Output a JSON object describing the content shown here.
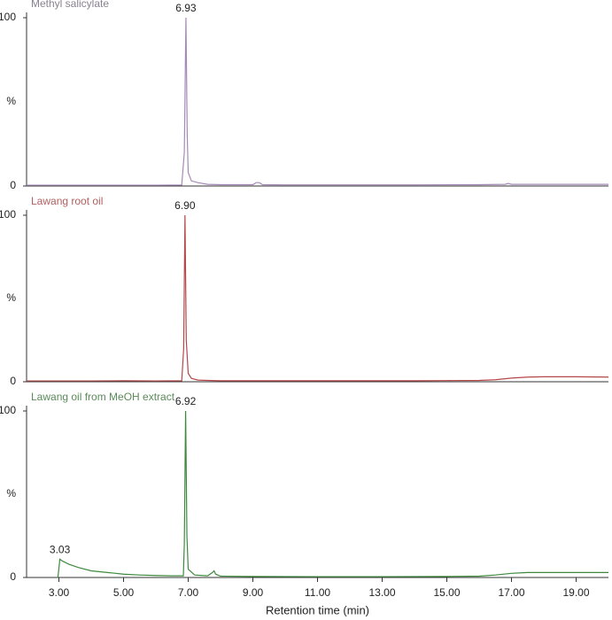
{
  "chart_data": [
    {
      "type": "line",
      "title": "Methyl salicylate",
      "title_color": "#8a8290",
      "ylabel": "%",
      "xlim": [
        2,
        20
      ],
      "ylim": [
        0,
        100
      ],
      "yticks": [
        0,
        100
      ],
      "x": [
        2.0,
        3.0,
        4.0,
        5.0,
        6.0,
        6.8,
        6.88,
        6.93,
        6.97,
        7.0,
        7.1,
        7.3,
        7.6,
        8.0,
        9.0,
        9.1,
        9.2,
        9.3,
        10.0,
        12.0,
        14.0,
        16.0,
        16.8,
        16.9,
        17.0,
        18.0,
        20.0
      ],
      "series": [
        {
          "color": "#a48ab8",
          "values": [
            0.5,
            0.5,
            0.5,
            0.5,
            0.5,
            0.6,
            20,
            100,
            30,
            8,
            3,
            2,
            1,
            0.8,
            0.8,
            2,
            2,
            0.8,
            0.7,
            0.7,
            0.7,
            0.8,
            1,
            1.5,
            1,
            1,
            1
          ]
        }
      ],
      "annotations": [
        {
          "label": "6.93",
          "x": 6.93,
          "y": 100
        }
      ]
    },
    {
      "type": "line",
      "title": "Lawang root oil",
      "title_color": "#b0605e",
      "ylabel": "%",
      "xlim": [
        2,
        20
      ],
      "ylim": [
        0,
        100
      ],
      "yticks": [
        0,
        100
      ],
      "x": [
        2.0,
        3.0,
        4.0,
        5.0,
        6.0,
        6.8,
        6.86,
        6.9,
        6.94,
        7.0,
        7.1,
        7.3,
        7.6,
        8.0,
        10.0,
        12.0,
        14.0,
        15.0,
        16.0,
        16.5,
        17.0,
        17.5,
        18.0,
        19.0,
        20.0
      ],
      "series": [
        {
          "color": "#b5474a",
          "values": [
            0.5,
            0.5,
            0.5,
            0.6,
            0.5,
            0.6,
            20,
            100,
            25,
            5,
            2,
            1,
            0.8,
            0.6,
            0.6,
            0.6,
            0.6,
            0.7,
            0.8,
            1.2,
            2.2,
            2.8,
            3,
            3,
            2.8
          ]
        }
      ],
      "annotations": [
        {
          "label": "6.90",
          "x": 6.9,
          "y": 100
        }
      ]
    },
    {
      "type": "line",
      "title": "Lawang oil from MeOH extract",
      "title_color": "#5a8a5a",
      "ylabel": "%",
      "xlabel": "Retention time (min)",
      "xlim": [
        2,
        20
      ],
      "ylim": [
        0,
        100
      ],
      "yticks": [
        0,
        100
      ],
      "xticks": [
        {
          "value": 3,
          "label": "3.00"
        },
        {
          "value": 5,
          "label": "5.00"
        },
        {
          "value": 7,
          "label": "7.00"
        },
        {
          "value": 9,
          "label": "9.00"
        },
        {
          "value": 11,
          "label": "11.00"
        },
        {
          "value": 13,
          "label": "13.00"
        },
        {
          "value": 15,
          "label": "15.00"
        },
        {
          "value": 17,
          "label": "17.00"
        },
        {
          "value": 19,
          "label": "19.00"
        }
      ],
      "x": [
        2.97,
        3.03,
        3.1,
        3.3,
        3.6,
        4.0,
        4.5,
        5.0,
        5.5,
        6.0,
        6.5,
        6.85,
        6.88,
        6.92,
        6.96,
        7.0,
        7.2,
        7.6,
        7.75,
        7.8,
        7.85,
        8.0,
        9.0,
        11.0,
        13.0,
        15.0,
        16.0,
        16.5,
        17.0,
        17.5,
        18.0,
        19.0,
        20.0
      ],
      "series": [
        {
          "color": "#3d8a3d",
          "values": [
            0,
            11,
            10,
            8,
            6,
            4,
            3,
            2,
            1.5,
            1.2,
            1,
            1,
            20,
            100,
            25,
            5,
            1.5,
            1,
            3,
            4,
            2,
            0.8,
            0.6,
            0.5,
            0.5,
            0.6,
            0.8,
            1.5,
            2.5,
            3,
            3,
            3,
            3
          ]
        }
      ],
      "annotations": [
        {
          "label": "6.92",
          "x": 6.92,
          "y": 100
        },
        {
          "label": "3.03",
          "x": 3.03,
          "y": 11
        }
      ]
    }
  ]
}
